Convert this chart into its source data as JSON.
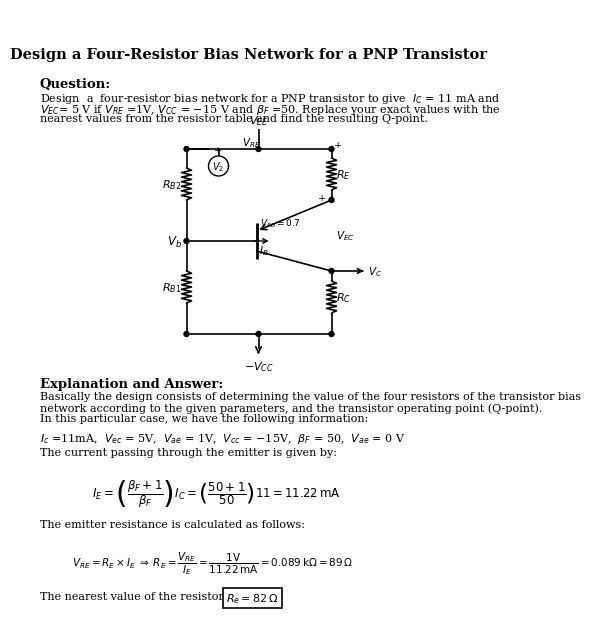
{
  "title": "Design a Four-Resistor Bias Network for a PNP Transistor",
  "q_header": "Question:",
  "q_body_line1": "Design  a  four-resistor bias network for a PNP transistor to give  $I_C$ = 11 mA and",
  "q_body_line2": "$V_{EC}$= 5 V if $V_{RE}$ =1V, $V_{CC}$ = $-$15 V and $\\beta_F$ =50. Replace your exact values with the",
  "q_body_line3": "nearest values from the resistor table and find the resulting Q-point.",
  "ans_header": "Explanation and Answer:",
  "ans_line1": "Basically the design consists of determining the value of the four resistors of the transistor bias",
  "ans_line2": "network according to the given parameters, and the transistor operating point (Q-point).",
  "ans_line3": "In this particular case, we have the following information:",
  "eq1": "$I_c$ =11mA,  $V_{ec}$ = 5V,  $V_{ae}$ = 1V,  $V_{cc}$ = $-$15V,  $\\beta_F$ = 50,  $V_{ae}$ = 0 V",
  "text1": "The current passing through the emitter is given by:",
  "eq2": "$I_E = \\left(\\dfrac{\\beta_F+1}{\\beta_F}\\right)I_C = \\left(\\dfrac{50+1}{50}\\right)11 = 11.22\\,\\mathrm{mA}$",
  "text2": "The emitter resistance is calculated as follows:",
  "eq3": "$V_{RE} = R_E \\times I_E \\;\\Rightarrow\\; R_E = \\dfrac{V_{RE}}{I_E} = \\dfrac{1\\mathrm{V}}{11.22\\,\\mathrm{mA}} = 0.089\\,\\mathrm{k\\Omega} = 89\\,\\Omega$",
  "text3": "The nearest value of the resistor table is",
  "box_eq": "$R_e = 82\\,\\Omega$",
  "bg": "#ffffff",
  "fg": "#000000"
}
